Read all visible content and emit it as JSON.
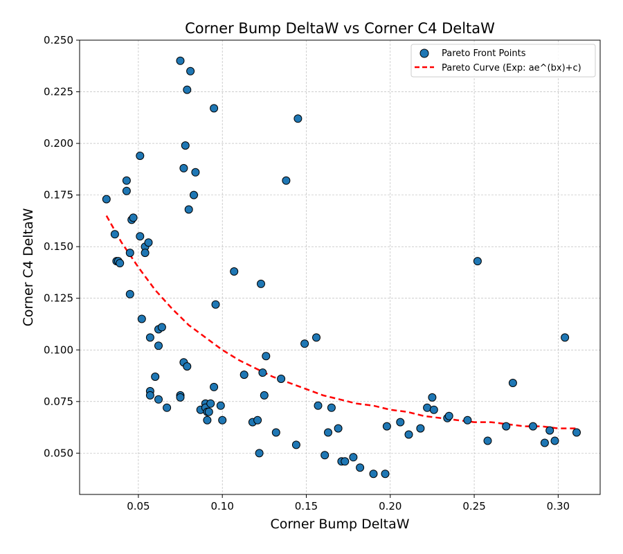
{
  "chart_data": {
    "type": "scatter",
    "title": "Corner Bump DeltaW vs Corner C4 DeltaW",
    "xlabel": "Corner Bump DeltaW",
    "ylabel": "Corner C4 DeltaW",
    "xlim": [
      0.015,
      0.325
    ],
    "ylim": [
      0.03,
      0.25
    ],
    "xticks": [
      "0.05",
      "0.10",
      "0.15",
      "0.20",
      "0.25",
      "0.30"
    ],
    "yticks": [
      "0.050",
      "0.075",
      "0.100",
      "0.125",
      "0.150",
      "0.175",
      "0.200",
      "0.225",
      "0.250"
    ],
    "grid": true,
    "legend_position": "top-right",
    "colors": {
      "points": "#1f77b4",
      "curve": "#ff0000"
    },
    "series": [
      {
        "name": "Pareto Front Points",
        "kind": "scatter",
        "points": [
          [
            0.031,
            0.173
          ],
          [
            0.036,
            0.156
          ],
          [
            0.037,
            0.143
          ],
          [
            0.038,
            0.143
          ],
          [
            0.039,
            0.142
          ],
          [
            0.043,
            0.182
          ],
          [
            0.043,
            0.177
          ],
          [
            0.045,
            0.127
          ],
          [
            0.045,
            0.147
          ],
          [
            0.046,
            0.163
          ],
          [
            0.047,
            0.164
          ],
          [
            0.051,
            0.194
          ],
          [
            0.051,
            0.155
          ],
          [
            0.052,
            0.115
          ],
          [
            0.054,
            0.15
          ],
          [
            0.054,
            0.147
          ],
          [
            0.056,
            0.152
          ],
          [
            0.057,
            0.106
          ],
          [
            0.057,
            0.08
          ],
          [
            0.057,
            0.078
          ],
          [
            0.06,
            0.087
          ],
          [
            0.062,
            0.11
          ],
          [
            0.062,
            0.076
          ],
          [
            0.062,
            0.102
          ],
          [
            0.064,
            0.111
          ],
          [
            0.067,
            0.072
          ],
          [
            0.075,
            0.24
          ],
          [
            0.075,
            0.078
          ],
          [
            0.075,
            0.077
          ],
          [
            0.077,
            0.094
          ],
          [
            0.077,
            0.188
          ],
          [
            0.078,
            0.199
          ],
          [
            0.079,
            0.226
          ],
          [
            0.079,
            0.092
          ],
          [
            0.08,
            0.168
          ],
          [
            0.081,
            0.235
          ],
          [
            0.083,
            0.175
          ],
          [
            0.084,
            0.186
          ],
          [
            0.087,
            0.071
          ],
          [
            0.09,
            0.074
          ],
          [
            0.09,
            0.072
          ],
          [
            0.091,
            0.07
          ],
          [
            0.091,
            0.066
          ],
          [
            0.092,
            0.07
          ],
          [
            0.093,
            0.074
          ],
          [
            0.095,
            0.217
          ],
          [
            0.095,
            0.082
          ],
          [
            0.096,
            0.122
          ],
          [
            0.099,
            0.073
          ],
          [
            0.1,
            0.066
          ],
          [
            0.107,
            0.138
          ],
          [
            0.113,
            0.088
          ],
          [
            0.118,
            0.065
          ],
          [
            0.121,
            0.066
          ],
          [
            0.122,
            0.05
          ],
          [
            0.123,
            0.132
          ],
          [
            0.124,
            0.089
          ],
          [
            0.125,
            0.078
          ],
          [
            0.126,
            0.097
          ],
          [
            0.132,
            0.06
          ],
          [
            0.135,
            0.086
          ],
          [
            0.138,
            0.182
          ],
          [
            0.144,
            0.054
          ],
          [
            0.145,
            0.212
          ],
          [
            0.149,
            0.103
          ],
          [
            0.156,
            0.106
          ],
          [
            0.157,
            0.073
          ],
          [
            0.161,
            0.049
          ],
          [
            0.163,
            0.06
          ],
          [
            0.165,
            0.072
          ],
          [
            0.169,
            0.062
          ],
          [
            0.171,
            0.046
          ],
          [
            0.173,
            0.046
          ],
          [
            0.178,
            0.048
          ],
          [
            0.182,
            0.043
          ],
          [
            0.19,
            0.04
          ],
          [
            0.197,
            0.04
          ],
          [
            0.198,
            0.063
          ],
          [
            0.206,
            0.065
          ],
          [
            0.211,
            0.059
          ],
          [
            0.218,
            0.062
          ],
          [
            0.222,
            0.072
          ],
          [
            0.225,
            0.077
          ],
          [
            0.226,
            0.071
          ],
          [
            0.234,
            0.067
          ],
          [
            0.235,
            0.068
          ],
          [
            0.246,
            0.066
          ],
          [
            0.252,
            0.143
          ],
          [
            0.258,
            0.056
          ],
          [
            0.269,
            0.063
          ],
          [
            0.273,
            0.084
          ],
          [
            0.285,
            0.063
          ],
          [
            0.292,
            0.055
          ],
          [
            0.295,
            0.061
          ],
          [
            0.298,
            0.056
          ],
          [
            0.304,
            0.106
          ],
          [
            0.311,
            0.06
          ]
        ]
      },
      {
        "name": "Pareto Curve (Exp: ae^(bx)+c)",
        "kind": "line",
        "style": "dashed",
        "points": [
          [
            0.031,
            0.165
          ],
          [
            0.04,
            0.152
          ],
          [
            0.05,
            0.14
          ],
          [
            0.06,
            0.129
          ],
          [
            0.07,
            0.12
          ],
          [
            0.08,
            0.112
          ],
          [
            0.09,
            0.106
          ],
          [
            0.1,
            0.1
          ],
          [
            0.11,
            0.095
          ],
          [
            0.12,
            0.091
          ],
          [
            0.13,
            0.087
          ],
          [
            0.14,
            0.084
          ],
          [
            0.15,
            0.081
          ],
          [
            0.16,
            0.078
          ],
          [
            0.17,
            0.076
          ],
          [
            0.18,
            0.074
          ],
          [
            0.19,
            0.073
          ],
          [
            0.2,
            0.071
          ],
          [
            0.21,
            0.07
          ],
          [
            0.22,
            0.068
          ],
          [
            0.23,
            0.067
          ],
          [
            0.24,
            0.066
          ],
          [
            0.25,
            0.065
          ],
          [
            0.26,
            0.065
          ],
          [
            0.27,
            0.064
          ],
          [
            0.28,
            0.063
          ],
          [
            0.29,
            0.063
          ],
          [
            0.3,
            0.062
          ],
          [
            0.311,
            0.062
          ]
        ]
      }
    ]
  }
}
